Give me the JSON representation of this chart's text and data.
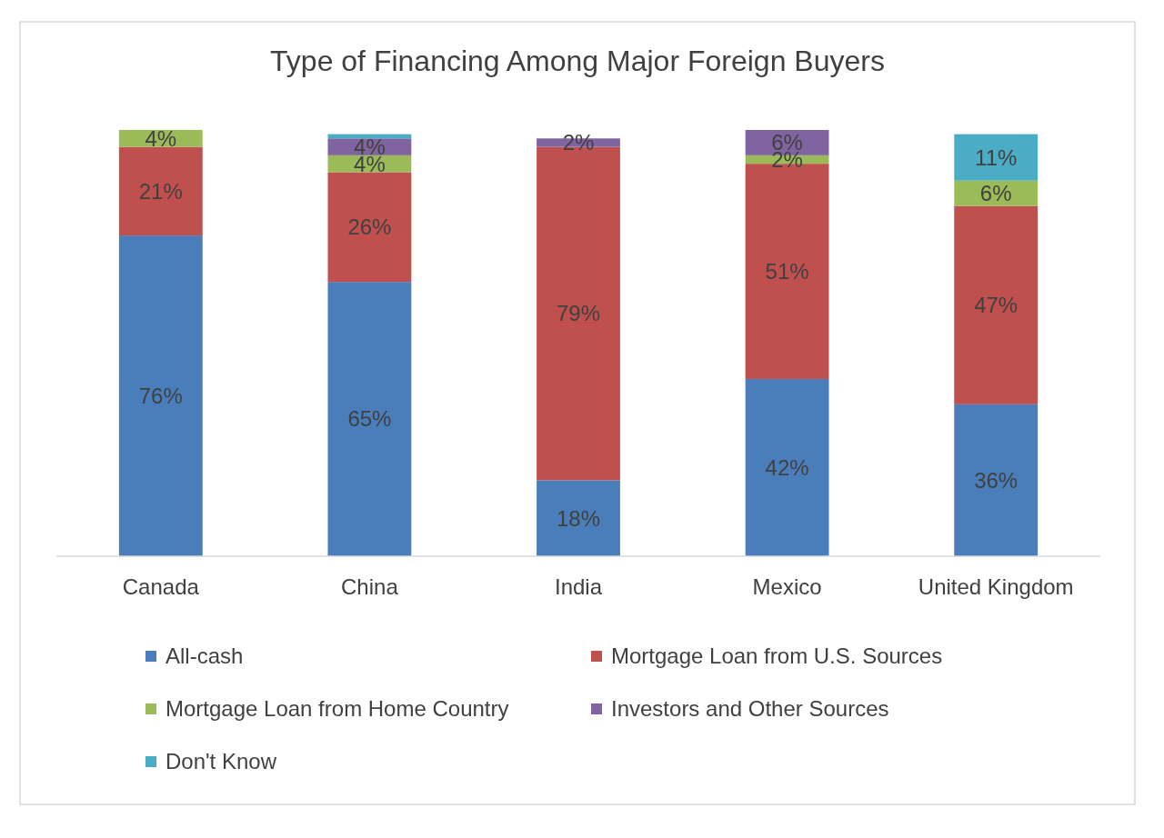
{
  "chart_data": {
    "type": "bar",
    "stacked": true,
    "title": "Type of Financing Among Major Foreign Buyers",
    "categories": [
      "Canada",
      "China",
      "India",
      "Mexico",
      "United Kingdom"
    ],
    "legend": "bottom",
    "series": [
      {
        "name": "All-cash",
        "color": "#4a7ebb",
        "values": [
          76,
          65,
          18,
          42,
          36
        ],
        "value_labels": [
          "76%",
          "65%",
          "18%",
          "42%",
          "36%"
        ]
      },
      {
        "name": "Mortgage Loan from U.S. Sources",
        "color": "#c0504d",
        "values": [
          21,
          26,
          79,
          51,
          47
        ],
        "value_labels": [
          "21%",
          "26%",
          "79%",
          "51%",
          "47%"
        ]
      },
      {
        "name": "Mortgage Loan from Home Country",
        "color": "#9bbb59",
        "values": [
          4,
          4,
          null,
          2,
          6
        ],
        "value_labels": [
          "4%",
          "4%",
          null,
          "2%",
          "6%"
        ]
      },
      {
        "name": "Investors and Other Sources",
        "color": "#8064a2",
        "values": [
          null,
          4,
          2,
          6,
          null
        ],
        "value_labels": [
          null,
          "4%",
          "2%",
          "6%",
          null
        ]
      },
      {
        "name": "Don't Know",
        "color": "#4bacc6",
        "values": [
          null,
          1,
          null,
          null,
          11
        ],
        "value_labels": [
          null,
          null,
          null,
          null,
          "11%"
        ]
      }
    ]
  }
}
